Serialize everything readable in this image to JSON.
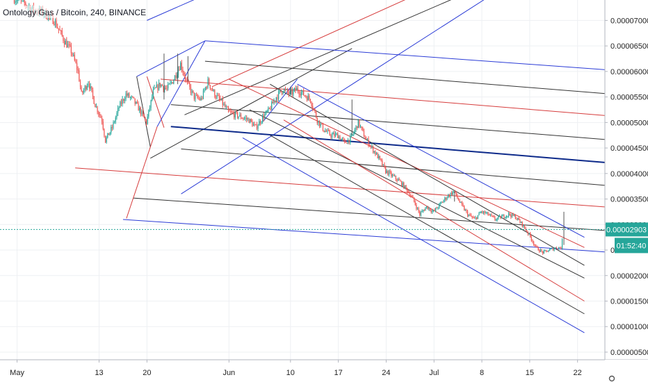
{
  "header": {
    "symbol_label": "Ontology Gas / Bitcoin, 240, BINANCE"
  },
  "price_tag": {
    "value": "0.00002903",
    "countdown": "01:52:40"
  },
  "colors": {
    "background": "#ffffff",
    "grid": "#eef0f3",
    "axis_text": "#222222",
    "candle_up": "#26a69a",
    "candle_down": "#ef5350",
    "last_price": "#26a69a",
    "fork_blue": "#2a3bd6",
    "fork_red": "#d63b3b",
    "fork_black": "#333333",
    "fork_navy": "#0d2a8a"
  },
  "chart_data": {
    "type": "candlestick",
    "title": "Ontology Gas / Bitcoin, 240, BINANCE",
    "xlabel": "",
    "ylabel": "",
    "x_tick_labels": [
      "May",
      "13",
      "20",
      "Jun",
      "10",
      "17",
      "24",
      "Jul",
      "8",
      "15",
      "22"
    ],
    "x_tick_days": [
      0,
      12,
      19,
      31,
      40,
      47,
      54,
      61,
      68,
      75,
      82
    ],
    "x_start_date": "2019-05-01",
    "y_tick_labels": [
      "0.00007000",
      "0.00006500",
      "0.00006000",
      "0.00005500",
      "0.00005000",
      "0.00004500",
      "0.00004000",
      "0.00003500",
      "0.00003000",
      "0.00002500",
      "0.00002000",
      "0.00001500",
      "0.00001000",
      "0.00000500"
    ],
    "y_ticks": [
      7e-05,
      6.5e-05,
      6e-05,
      5.5e-05,
      5e-05,
      4.5e-05,
      4e-05,
      3.5e-05,
      3e-05,
      2.5e-05,
      2e-05,
      1.5e-05,
      1e-05,
      5e-06
    ],
    "ylim": [
      3.5e-06,
      7.4e-05
    ],
    "xlim_days": [
      -2.5,
      86
    ],
    "grid": true,
    "last_price": 2.903e-05,
    "price_path": [
      [
        -0.5,
        7.45e-05
      ],
      [
        1,
        7.35e-05
      ],
      [
        2.5,
        7.2e-05
      ],
      [
        4,
        7.15e-05
      ],
      [
        5.5,
        7e-05
      ],
      [
        7,
        6.6e-05
      ],
      [
        8,
        6.4e-05
      ],
      [
        9,
        6e-05
      ],
      [
        9.5,
        5.55e-05
      ],
      [
        10.5,
        5.8e-05
      ],
      [
        11.5,
        5.35e-05
      ],
      [
        12.5,
        5.05e-05
      ],
      [
        13,
        4.65e-05
      ],
      [
        14,
        4.9e-05
      ],
      [
        15,
        5.3e-05
      ],
      [
        16,
        5.55e-05
      ],
      [
        17,
        5.45e-05
      ],
      [
        18,
        5.25e-05
      ],
      [
        19,
        5e-05
      ],
      [
        20,
        5.6e-05
      ],
      [
        21,
        5.75e-05
      ],
      [
        22,
        5.65e-05
      ],
      [
        23,
        5.85e-05
      ],
      [
        24,
        6.15e-05
      ],
      [
        25,
        5.75e-05
      ],
      [
        26,
        5.5e-05
      ],
      [
        27,
        5.45e-05
      ],
      [
        28,
        5.8e-05
      ],
      [
        29,
        5.55e-05
      ],
      [
        30,
        5.4e-05
      ],
      [
        31,
        5.2e-05
      ],
      [
        32,
        5.15e-05
      ],
      [
        33,
        5.1e-05
      ],
      [
        34,
        5.05e-05
      ],
      [
        35,
        4.9e-05
      ],
      [
        36,
        5.1e-05
      ],
      [
        37,
        5.25e-05
      ],
      [
        38,
        5.5e-05
      ],
      [
        39,
        5.65e-05
      ],
      [
        40,
        5.55e-05
      ],
      [
        41,
        5.65e-05
      ],
      [
        42,
        5.55e-05
      ],
      [
        43,
        5.45e-05
      ],
      [
        44,
        5.05e-05
      ],
      [
        45,
        4.85e-05
      ],
      [
        46,
        4.75e-05
      ],
      [
        47,
        4.75e-05
      ],
      [
        48,
        4.6e-05
      ],
      [
        49,
        4.7e-05
      ],
      [
        50,
        5e-05
      ],
      [
        51,
        4.7e-05
      ],
      [
        52,
        4.5e-05
      ],
      [
        53,
        4.3e-05
      ],
      [
        54,
        4.05e-05
      ],
      [
        55,
        3.95e-05
      ],
      [
        56,
        3.85e-05
      ],
      [
        57,
        3.7e-05
      ],
      [
        58,
        3.5e-05
      ],
      [
        59,
        3.2e-05
      ],
      [
        60,
        3.35e-05
      ],
      [
        61,
        3.25e-05
      ],
      [
        62,
        3.4e-05
      ],
      [
        63,
        3.55e-05
      ],
      [
        64,
        3.65e-05
      ],
      [
        65,
        3.4e-05
      ],
      [
        66,
        3.2e-05
      ],
      [
        67,
        3.1e-05
      ],
      [
        68,
        3.25e-05
      ],
      [
        69,
        3.2e-05
      ],
      [
        70,
        3.1e-05
      ],
      [
        71,
        3.15e-05
      ],
      [
        72,
        3.2e-05
      ],
      [
        73,
        3.15e-05
      ],
      [
        74,
        3e-05
      ],
      [
        75,
        2.8e-05
      ],
      [
        76,
        2.55e-05
      ],
      [
        77,
        2.45e-05
      ],
      [
        78,
        2.5e-05
      ],
      [
        79,
        2.55e-05
      ],
      [
        79.7,
        2.55e-05
      ],
      [
        80,
        2.903e-05
      ]
    ],
    "wick_spikes": [
      [
        21.5,
        5.45e-05,
        6.35e-05
      ],
      [
        23.5,
        5.75e-05,
        6.35e-05
      ],
      [
        25,
        5.8e-05,
        6.3e-05
      ],
      [
        40,
        5.55e-05,
        5.7e-05
      ],
      [
        49,
        4.75e-05,
        5.45e-05
      ],
      [
        64,
        3.45e-05,
        3.65e-05
      ],
      [
        80,
        2.6e-05,
        3.25e-05
      ]
    ],
    "drawings": [
      {
        "color": "fork_blue",
        "width": 1,
        "from": [
          19,
          7e-05
        ],
        "to": [
          27.5,
          7.5e-05
        ]
      },
      {
        "color": "fork_red",
        "width": 1,
        "from": [
          28.5,
          5.7e-05
        ],
        "to": [
          60,
          7.6e-05
        ]
      },
      {
        "color": "fork_black",
        "width": 1,
        "from": [
          24.5,
          5.15e-05
        ],
        "to": [
          66,
          7.55e-05
        ]
      },
      {
        "color": "fork_black",
        "width": 1,
        "from": [
          19.5,
          4.3e-05
        ],
        "to": [
          49,
          6.45e-05
        ]
      },
      {
        "color": "fork_blue",
        "width": 1,
        "from": [
          24,
          3.6e-05
        ],
        "to": [
          70,
          7.55e-05
        ]
      },
      {
        "color": "fork_blue",
        "width": 1,
        "from": [
          17.5,
          5.9e-05
        ],
        "to": [
          27.5,
          6.6e-05
        ]
      },
      {
        "color": "fork_blue",
        "width": 1,
        "from": [
          27.5,
          6.6e-05
        ],
        "to": [
          87.5,
          6.02e-05
        ]
      },
      {
        "color": "fork_black",
        "width": 1,
        "from": [
          27.5,
          6.2e-05
        ],
        "to": [
          87.5,
          5.55e-05
        ]
      },
      {
        "color": "fork_red",
        "width": 1,
        "from": [
          21,
          5.85e-05
        ],
        "to": [
          87.5,
          5.12e-05
        ]
      },
      {
        "color": "fork_black",
        "width": 1,
        "from": [
          22.5,
          5.35e-05
        ],
        "to": [
          87.5,
          4.65e-05
        ]
      },
      {
        "color": "fork_navy",
        "width": 2,
        "from": [
          22.5,
          4.92e-05
        ],
        "to": [
          87.5,
          4.2e-05
        ]
      },
      {
        "color": "fork_black",
        "width": 1,
        "from": [
          24,
          4.48e-05
        ],
        "to": [
          87.5,
          3.75e-05
        ]
      },
      {
        "color": "fork_red",
        "width": 1,
        "from": [
          8.5,
          4.11e-05
        ],
        "to": [
          87.5,
          3.33e-05
        ]
      },
      {
        "color": "fork_black",
        "width": 1,
        "from": [
          17,
          3.52e-05
        ],
        "to": [
          87.5,
          2.87e-05
        ]
      },
      {
        "color": "fork_blue",
        "width": 1,
        "from": [
          15.5,
          3.1e-05
        ],
        "to": [
          87.5,
          2.45e-05
        ]
      },
      {
        "color": "fork_red",
        "width": 1,
        "from": [
          19,
          5.9e-05
        ],
        "to": [
          21.5,
          4.9e-05
        ]
      },
      {
        "color": "fork_black",
        "width": 1,
        "from": [
          17.5,
          5.9e-05
        ],
        "to": [
          19.5,
          4.52e-05
        ]
      },
      {
        "color": "fork_red",
        "width": 1,
        "from": [
          16,
          3.12e-05
        ],
        "to": [
          20.5,
          4.92e-05
        ]
      },
      {
        "color": "fork_blue",
        "width": 1,
        "from": [
          20.5,
          4.92e-05
        ],
        "to": [
          27.5,
          6.6e-05
        ]
      },
      {
        "color": "fork_blue",
        "width": 1,
        "from": [
          36,
          5.02e-05
        ],
        "to": [
          41,
          5.85e-05
        ]
      },
      {
        "color": "fork_red",
        "width": 1,
        "from": [
          31,
          5.85e-05
        ],
        "to": [
          83,
          2.55e-05
        ]
      },
      {
        "color": "fork_black",
        "width": 1,
        "from": [
          34,
          5.25e-05
        ],
        "to": [
          83,
          1.95e-05
        ]
      },
      {
        "color": "fork_black",
        "width": 1,
        "from": [
          37,
          5.75e-05
        ],
        "to": [
          83,
          2.2e-05
        ]
      },
      {
        "color": "fork_blue",
        "width": 1,
        "from": [
          41,
          5.75e-05
        ],
        "to": [
          83,
          2.75e-05
        ]
      },
      {
        "color": "fork_blue",
        "width": 1,
        "from": [
          33,
          4.7e-05
        ],
        "to": [
          83,
          8.8e-06
        ]
      },
      {
        "color": "fork_red",
        "width": 1,
        "from": [
          39,
          5.05e-05
        ],
        "to": [
          83,
          1.5e-05
        ]
      },
      {
        "color": "fork_black",
        "width": 1,
        "from": [
          37,
          4.75e-05
        ],
        "to": [
          83,
          1.25e-05
        ]
      }
    ]
  }
}
